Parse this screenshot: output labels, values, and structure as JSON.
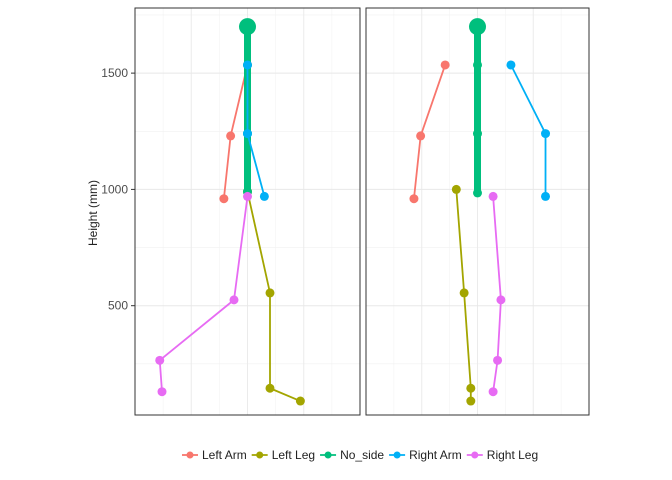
{
  "chart_data": {
    "type": "line",
    "xlabel": "",
    "ylabel": "Height (mm)",
    "ylim": [
      30,
      1780
    ],
    "yticks": [
      500,
      1000,
      1500
    ],
    "xlim": [
      -1,
      1
    ],
    "grid": true,
    "legend_placement": "bottom",
    "legend": [
      "Left Arm",
      "Left Leg",
      "No_side",
      "Right Arm",
      "Right Leg"
    ],
    "colors": {
      "Left Arm": "#F8766D",
      "Left Leg": "#A3A500",
      "No_side": "#00BF7D",
      "Right Arm": "#00B0F6",
      "Right Leg": "#E76BF3"
    },
    "panels": [
      {
        "name": "panel-left",
        "series": [
          {
            "name": "Left Arm",
            "x": [
              0.0,
              -0.15,
              -0.21
            ],
            "y": [
              1535,
              1230,
              960
            ]
          },
          {
            "name": "Left Leg",
            "x": [
              0.0,
              0.2,
              0.2,
              0.47
            ],
            "y": [
              990,
              555,
              145,
              90
            ]
          },
          {
            "name": "No_side",
            "x": [
              0.0,
              0.0,
              0.0,
              0.0
            ],
            "y": [
              1700,
              1535,
              1240,
              990
            ],
            "thick": true
          },
          {
            "name": "Right Arm",
            "x": [
              0.0,
              0.0,
              0.15
            ],
            "y": [
              1535,
              1240,
              970
            ]
          },
          {
            "name": "Right Leg",
            "x": [
              0.0,
              -0.12,
              -0.78,
              -0.76
            ],
            "y": [
              970,
              525,
              265,
              130
            ]
          }
        ]
      },
      {
        "name": "panel-right",
        "series": [
          {
            "name": "Left Arm",
            "x": [
              -0.29,
              -0.51,
              -0.57
            ],
            "y": [
              1535,
              1230,
              960
            ]
          },
          {
            "name": "Left Leg",
            "x": [
              -0.19,
              -0.12,
              -0.06,
              -0.06
            ],
            "y": [
              1000,
              555,
              145,
              90
            ]
          },
          {
            "name": "No_side",
            "x": [
              0.0,
              0.0,
              0.0,
              0.0
            ],
            "y": [
              1700,
              1535,
              1240,
              985
            ],
            "thick": true
          },
          {
            "name": "Right Arm",
            "x": [
              0.3,
              0.61,
              0.61
            ],
            "y": [
              1535,
              1240,
              970
            ]
          },
          {
            "name": "Right Leg",
            "x": [
              0.14,
              0.21,
              0.18,
              0.14
            ],
            "y": [
              970,
              525,
              265,
              130
            ]
          }
        ]
      }
    ]
  }
}
